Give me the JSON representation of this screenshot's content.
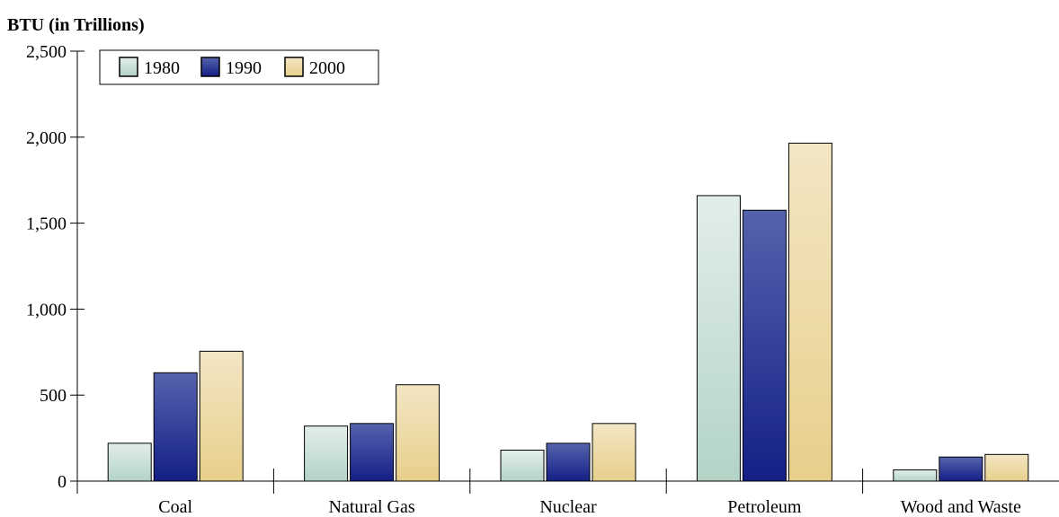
{
  "chart_data": {
    "type": "bar",
    "title": "",
    "xlabel": "",
    "ylabel": "BTU (in Trillions)",
    "categories": [
      "Coal",
      "Natural Gas",
      "Nuclear",
      "Petroleum",
      "Wood and Waste"
    ],
    "series": [
      {
        "name": "1980",
        "values": [
          220,
          320,
          180,
          1660,
          65
        ]
      },
      {
        "name": "1990",
        "values": [
          630,
          335,
          220,
          1575,
          140
        ]
      },
      {
        "name": "2000",
        "values": [
          755,
          560,
          335,
          1965,
          155
        ]
      }
    ],
    "ylim": [
      0,
      2500
    ],
    "yticks": [
      0,
      500,
      1000,
      1500,
      2000,
      2500
    ],
    "ytick_labels": [
      "0",
      "500",
      "1,000",
      "1,500",
      "2,000",
      "2,500"
    ],
    "grid": false,
    "legend_position": "top-left",
    "colors": {
      "1980": {
        "top": "#e2eee9",
        "bottom": "#b3d3c6"
      },
      "1990": {
        "top": "#5563ad",
        "bottom": "#141f86"
      },
      "2000": {
        "top": "#f3e6c4",
        "bottom": "#e7cf8b"
      }
    }
  }
}
